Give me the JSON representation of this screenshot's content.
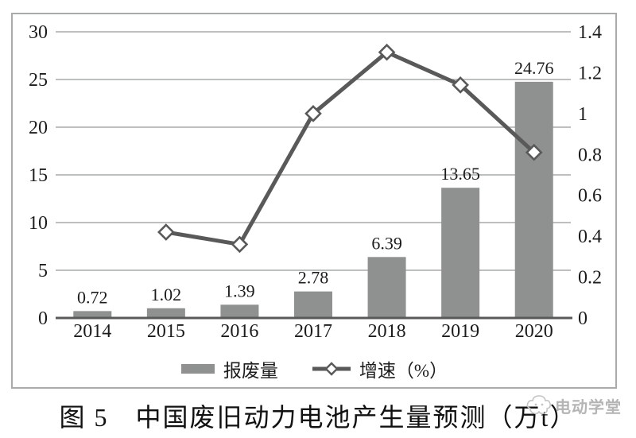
{
  "chart_data": {
    "type": "bar",
    "subtype": "bar+line combo",
    "categories": [
      "2014",
      "2015",
      "2016",
      "2017",
      "2018",
      "2019",
      "2020"
    ],
    "series": [
      {
        "name": "报废量",
        "type": "bar",
        "axis": "left",
        "values": [
          0.72,
          1.02,
          1.39,
          2.78,
          6.39,
          13.65,
          24.76
        ],
        "labels": [
          "0.72",
          "1.02",
          "1.39",
          "2.78",
          "6.39",
          "13.65",
          "24.76"
        ]
      },
      {
        "name": "增速（%）",
        "type": "line",
        "axis": "right",
        "marker": "diamond",
        "values": [
          null,
          0.42,
          0.36,
          1.0,
          1.3,
          1.14,
          0.81
        ]
      }
    ],
    "left_axis": {
      "min": 0,
      "max": 30,
      "step": 5,
      "ticks": [
        "0",
        "5",
        "10",
        "15",
        "20",
        "25",
        "30"
      ]
    },
    "right_axis": {
      "min": 0,
      "max": 1.4,
      "step": 0.2,
      "ticks": [
        "0",
        "0.2",
        "0.4",
        "0.6",
        "0.8",
        "1",
        "1.2",
        "1.4"
      ]
    },
    "grid": true,
    "legend_position": "bottom",
    "title": "图 5　中国废旧动力电池产生量预测（万t）"
  },
  "legend": {
    "bar_label": "报废量",
    "line_label": "增速（%）"
  },
  "caption": "图 5　中国废旧动力电池产生量预测（万t）",
  "watermark": "电动学堂",
  "colors": {
    "bar": "#8f9191",
    "line": "#595959",
    "grid": "#a9abab",
    "frame": "#a9abab",
    "axis_text": "#1c1c1c",
    "watermark": "#b5b5b5"
  }
}
